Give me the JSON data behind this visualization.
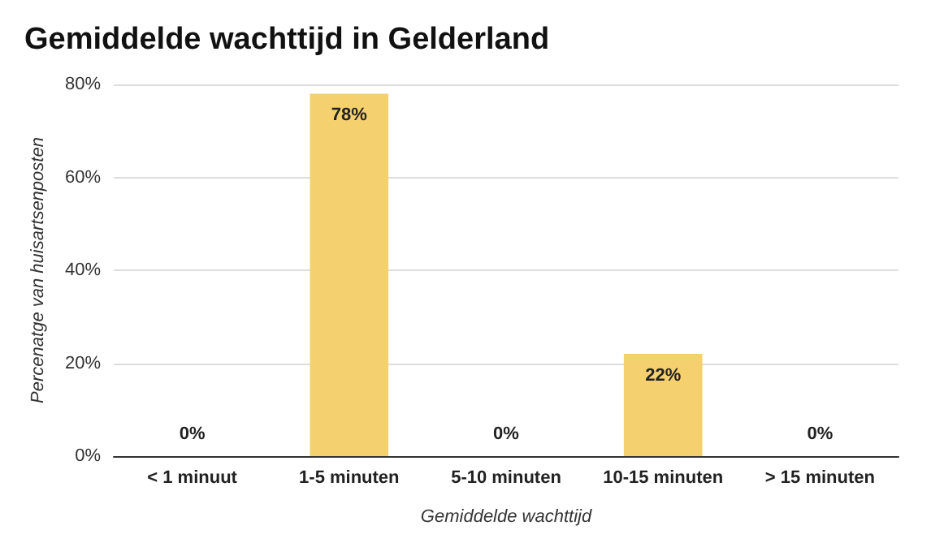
{
  "chart_data": {
    "type": "bar",
    "title": "Gemiddelde wachttijd in Gelderland",
    "xlabel": "Gemiddelde wachttijd",
    "ylabel": "Percenatge van huisartsenposten",
    "categories": [
      "< 1 minuut",
      "1-5 minuten",
      "5-10 minuten",
      "10-15 minuten",
      "> 15 minuten"
    ],
    "values": [
      0,
      78,
      0,
      22,
      0
    ],
    "value_labels": [
      "0%",
      "78%",
      "0%",
      "22%",
      "0%"
    ],
    "color": "#f5d06e",
    "ylim": [
      0,
      80
    ],
    "yticks": [
      {
        "value": 0,
        "label": "0%"
      },
      {
        "value": 20,
        "label": "20%"
      },
      {
        "value": 40,
        "label": "40%"
      },
      {
        "value": 60,
        "label": "60%"
      },
      {
        "value": 80,
        "label": "80%"
      }
    ],
    "grid": "y"
  }
}
